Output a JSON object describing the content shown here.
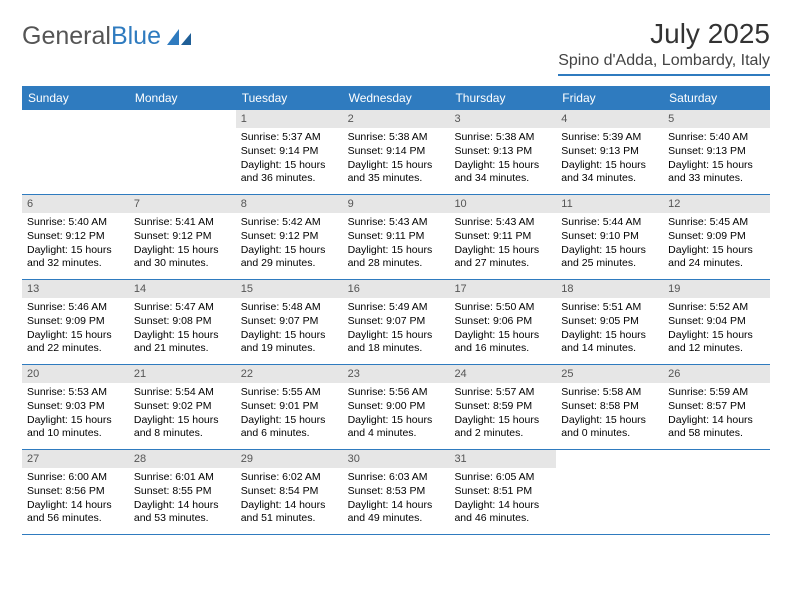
{
  "logo": {
    "text_general": "General",
    "text_blue": "Blue"
  },
  "header": {
    "month_title": "July 2025",
    "location": "Spino d'Adda, Lombardy, Italy"
  },
  "colors": {
    "header_bar": "#2f7bbf",
    "daynum_bg": "#e6e6e6",
    "text": "#000000",
    "title_text": "#333333"
  },
  "day_headers": [
    "Sunday",
    "Monday",
    "Tuesday",
    "Wednesday",
    "Thursday",
    "Friday",
    "Saturday"
  ],
  "weeks": [
    [
      {
        "empty": true
      },
      {
        "empty": true
      },
      {
        "num": "1",
        "sunrise": "Sunrise: 5:37 AM",
        "sunset": "Sunset: 9:14 PM",
        "daylight": "Daylight: 15 hours and 36 minutes."
      },
      {
        "num": "2",
        "sunrise": "Sunrise: 5:38 AM",
        "sunset": "Sunset: 9:14 PM",
        "daylight": "Daylight: 15 hours and 35 minutes."
      },
      {
        "num": "3",
        "sunrise": "Sunrise: 5:38 AM",
        "sunset": "Sunset: 9:13 PM",
        "daylight": "Daylight: 15 hours and 34 minutes."
      },
      {
        "num": "4",
        "sunrise": "Sunrise: 5:39 AM",
        "sunset": "Sunset: 9:13 PM",
        "daylight": "Daylight: 15 hours and 34 minutes."
      },
      {
        "num": "5",
        "sunrise": "Sunrise: 5:40 AM",
        "sunset": "Sunset: 9:13 PM",
        "daylight": "Daylight: 15 hours and 33 minutes."
      }
    ],
    [
      {
        "num": "6",
        "sunrise": "Sunrise: 5:40 AM",
        "sunset": "Sunset: 9:12 PM",
        "daylight": "Daylight: 15 hours and 32 minutes."
      },
      {
        "num": "7",
        "sunrise": "Sunrise: 5:41 AM",
        "sunset": "Sunset: 9:12 PM",
        "daylight": "Daylight: 15 hours and 30 minutes."
      },
      {
        "num": "8",
        "sunrise": "Sunrise: 5:42 AM",
        "sunset": "Sunset: 9:12 PM",
        "daylight": "Daylight: 15 hours and 29 minutes."
      },
      {
        "num": "9",
        "sunrise": "Sunrise: 5:43 AM",
        "sunset": "Sunset: 9:11 PM",
        "daylight": "Daylight: 15 hours and 28 minutes."
      },
      {
        "num": "10",
        "sunrise": "Sunrise: 5:43 AM",
        "sunset": "Sunset: 9:11 PM",
        "daylight": "Daylight: 15 hours and 27 minutes."
      },
      {
        "num": "11",
        "sunrise": "Sunrise: 5:44 AM",
        "sunset": "Sunset: 9:10 PM",
        "daylight": "Daylight: 15 hours and 25 minutes."
      },
      {
        "num": "12",
        "sunrise": "Sunrise: 5:45 AM",
        "sunset": "Sunset: 9:09 PM",
        "daylight": "Daylight: 15 hours and 24 minutes."
      }
    ],
    [
      {
        "num": "13",
        "sunrise": "Sunrise: 5:46 AM",
        "sunset": "Sunset: 9:09 PM",
        "daylight": "Daylight: 15 hours and 22 minutes."
      },
      {
        "num": "14",
        "sunrise": "Sunrise: 5:47 AM",
        "sunset": "Sunset: 9:08 PM",
        "daylight": "Daylight: 15 hours and 21 minutes."
      },
      {
        "num": "15",
        "sunrise": "Sunrise: 5:48 AM",
        "sunset": "Sunset: 9:07 PM",
        "daylight": "Daylight: 15 hours and 19 minutes."
      },
      {
        "num": "16",
        "sunrise": "Sunrise: 5:49 AM",
        "sunset": "Sunset: 9:07 PM",
        "daylight": "Daylight: 15 hours and 18 minutes."
      },
      {
        "num": "17",
        "sunrise": "Sunrise: 5:50 AM",
        "sunset": "Sunset: 9:06 PM",
        "daylight": "Daylight: 15 hours and 16 minutes."
      },
      {
        "num": "18",
        "sunrise": "Sunrise: 5:51 AM",
        "sunset": "Sunset: 9:05 PM",
        "daylight": "Daylight: 15 hours and 14 minutes."
      },
      {
        "num": "19",
        "sunrise": "Sunrise: 5:52 AM",
        "sunset": "Sunset: 9:04 PM",
        "daylight": "Daylight: 15 hours and 12 minutes."
      }
    ],
    [
      {
        "num": "20",
        "sunrise": "Sunrise: 5:53 AM",
        "sunset": "Sunset: 9:03 PM",
        "daylight": "Daylight: 15 hours and 10 minutes."
      },
      {
        "num": "21",
        "sunrise": "Sunrise: 5:54 AM",
        "sunset": "Sunset: 9:02 PM",
        "daylight": "Daylight: 15 hours and 8 minutes."
      },
      {
        "num": "22",
        "sunrise": "Sunrise: 5:55 AM",
        "sunset": "Sunset: 9:01 PM",
        "daylight": "Daylight: 15 hours and 6 minutes."
      },
      {
        "num": "23",
        "sunrise": "Sunrise: 5:56 AM",
        "sunset": "Sunset: 9:00 PM",
        "daylight": "Daylight: 15 hours and 4 minutes."
      },
      {
        "num": "24",
        "sunrise": "Sunrise: 5:57 AM",
        "sunset": "Sunset: 8:59 PM",
        "daylight": "Daylight: 15 hours and 2 minutes."
      },
      {
        "num": "25",
        "sunrise": "Sunrise: 5:58 AM",
        "sunset": "Sunset: 8:58 PM",
        "daylight": "Daylight: 15 hours and 0 minutes."
      },
      {
        "num": "26",
        "sunrise": "Sunrise: 5:59 AM",
        "sunset": "Sunset: 8:57 PM",
        "daylight": "Daylight: 14 hours and 58 minutes."
      }
    ],
    [
      {
        "num": "27",
        "sunrise": "Sunrise: 6:00 AM",
        "sunset": "Sunset: 8:56 PM",
        "daylight": "Daylight: 14 hours and 56 minutes."
      },
      {
        "num": "28",
        "sunrise": "Sunrise: 6:01 AM",
        "sunset": "Sunset: 8:55 PM",
        "daylight": "Daylight: 14 hours and 53 minutes."
      },
      {
        "num": "29",
        "sunrise": "Sunrise: 6:02 AM",
        "sunset": "Sunset: 8:54 PM",
        "daylight": "Daylight: 14 hours and 51 minutes."
      },
      {
        "num": "30",
        "sunrise": "Sunrise: 6:03 AM",
        "sunset": "Sunset: 8:53 PM",
        "daylight": "Daylight: 14 hours and 49 minutes."
      },
      {
        "num": "31",
        "sunrise": "Sunrise: 6:05 AM",
        "sunset": "Sunset: 8:51 PM",
        "daylight": "Daylight: 14 hours and 46 minutes."
      },
      {
        "empty": true
      },
      {
        "empty": true
      }
    ]
  ]
}
